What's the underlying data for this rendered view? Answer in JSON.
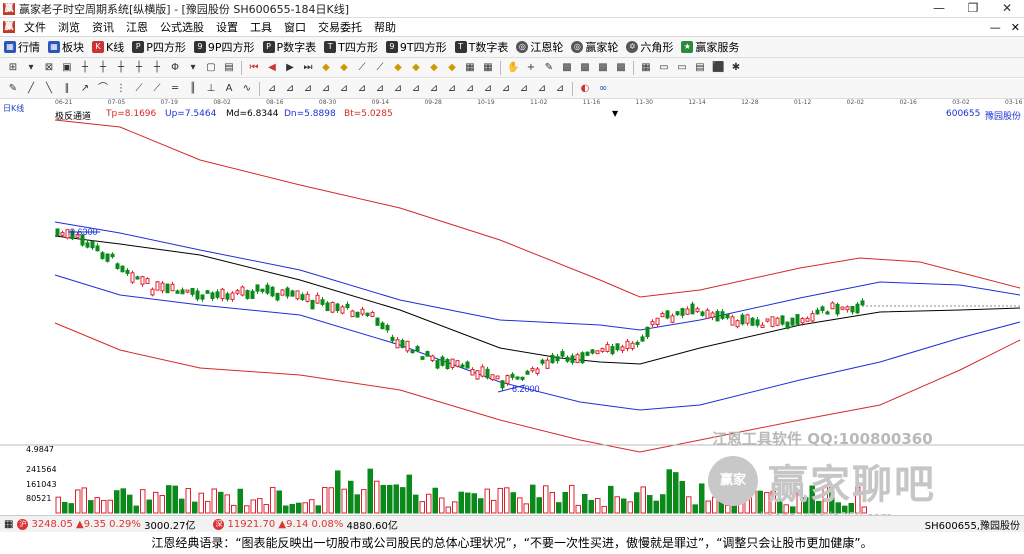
{
  "window": {
    "title": "赢家老子时空周期系统[纵横版] - [豫园股份 SH600655-184日K线]",
    "controls": [
      "—",
      "❐",
      "✕"
    ]
  },
  "menubar": {
    "items": [
      "文件",
      "浏览",
      "资讯",
      "江恩",
      "公式选股",
      "设置",
      "工具",
      "窗口",
      "交易委托",
      "帮助"
    ],
    "right": [
      "—",
      "✕"
    ]
  },
  "toolbar1": {
    "items": [
      {
        "label": "行情",
        "icon": "grid-icon"
      },
      {
        "label": "板块",
        "icon": "blocks-icon"
      },
      {
        "label": "K线",
        "icon": "candles-icon"
      },
      {
        "label": "P四方形",
        "icon": "square-icon"
      },
      {
        "label": "9P四方形",
        "icon": "square-icon"
      },
      {
        "label": "P数字表",
        "icon": "table-icon"
      },
      {
        "label": "T四方形",
        "icon": "square-icon"
      },
      {
        "label": "9T四方形",
        "icon": "square-icon"
      },
      {
        "label": "T数字表",
        "icon": "table-icon"
      },
      {
        "label": "江恩轮",
        "icon": "wheel-icon"
      },
      {
        "label": "赢家轮",
        "icon": "wheel-icon"
      },
      {
        "label": "六角形",
        "icon": "hexagon-icon"
      },
      {
        "label": "赢家服务",
        "icon": "service-icon"
      }
    ]
  },
  "chart": {
    "date_axis": [
      "06-21",
      "07-05",
      "07-19",
      "08-02",
      "08-16",
      "08-30",
      "09-14",
      "09-28",
      "10-19",
      "11-02",
      "11-16",
      "11-30",
      "12-14",
      "12-28",
      "01-12",
      "02-02",
      "02-16",
      "03-02",
      "03-16"
    ],
    "period_label": "日K线",
    "indicator_name": "极反通道",
    "tp": "Tp=8.1696",
    "up": "Up=7.5464",
    "md": "Md=6.8344",
    "dn": "Dn=5.8898",
    "bt": "Bt=5.0285",
    "stock_code": "600655",
    "stock_name": "豫园股份",
    "high_mark": "9.6300",
    "low_mark": "6.2000",
    "bottom_price": "4.9847",
    "volume_labels": [
      "241564",
      "161043",
      "80521"
    ],
    "colors": {
      "up": "#e0202f",
      "down": "#0a8a1a",
      "upper_band": "#d42a2a",
      "mid_band": "#1e2fd6",
      "middle": "#000000"
    }
  },
  "watermark": {
    "line1": "江恩工具软件  QQ:100800360",
    "circle": "赢家",
    "big": "赢家聊吧",
    "url": "liaoba.yingjia360.com"
  },
  "statusbar": {
    "sh_index": "3248.05",
    "sh_change": "▲9.35",
    "sh_pct": "0.29%",
    "sh_amount": "3000.27亿",
    "sz_index": "11921.70",
    "sz_change": "▲9.14",
    "sz_pct": "0.08%",
    "sz_amount": "4880.60亿",
    "stock": "SH600655,豫园股份"
  },
  "quote": "江恩经典语录：“图表能反映出一切股市或公司股民的总体心理状况”，“不要一次性买进，傲慢就是罪过”，“调整只会让股市更加健康”。"
}
